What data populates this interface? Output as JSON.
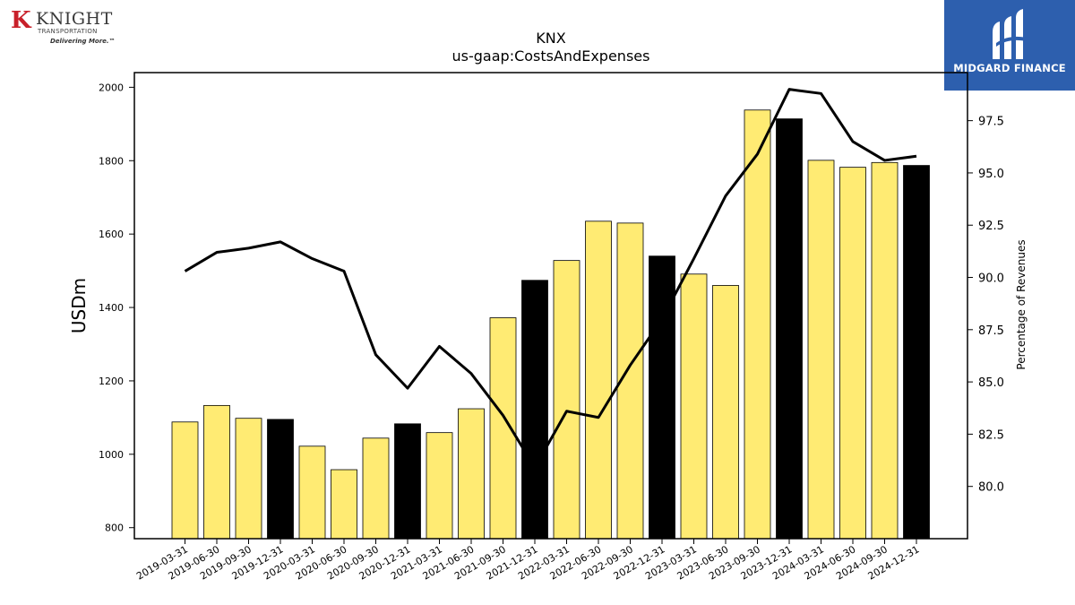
{
  "branding": {
    "left_logo": {
      "k_letter": "K",
      "name": "KNIGHT",
      "sub": "TRANSPORTATION",
      "tagline": "Delivering More.™"
    },
    "right_logo": {
      "text": "MIDGARD FINANCE",
      "bg_color": "#2d5fae"
    }
  },
  "chart_data": {
    "type": "bar",
    "title": "KNX",
    "subtitle": "us-gaap:CostsAndExpenses",
    "ylabel": "USDm",
    "y2label": "Percentage of Revenues",
    "ylim": [
      770,
      2040
    ],
    "y2lim": [
      77.5,
      99.8
    ],
    "yticks": [
      800,
      1000,
      1200,
      1400,
      1600,
      1800,
      2000
    ],
    "y2ticks": [
      80.0,
      82.5,
      85.0,
      87.5,
      90.0,
      92.5,
      95.0,
      97.5
    ],
    "y2tick_labels": [
      "80.0",
      "82.5",
      "85.0",
      "87.5",
      "90.0",
      "92.5",
      "95.0",
      "97.5"
    ],
    "categories": [
      "2019-03-31",
      "2019-06-30",
      "2019-09-30",
      "2019-12-31",
      "2020-03-31",
      "2020-06-30",
      "2020-09-30",
      "2020-12-31",
      "2021-03-31",
      "2021-06-30",
      "2021-09-30",
      "2021-12-31",
      "2022-03-31",
      "2022-06-30",
      "2022-09-30",
      "2022-12-31",
      "2023-03-31",
      "2023-06-30",
      "2023-09-30",
      "2023-12-31",
      "2024-03-31",
      "2024-06-30",
      "2024-09-30",
      "2024-12-31"
    ],
    "series": [
      {
        "type": "bar",
        "values": [
          1088,
          1133,
          1098,
          1095,
          1022,
          958,
          1044,
          1083,
          1059,
          1124,
          1372,
          1474,
          1528,
          1635,
          1630,
          1540,
          1491,
          1460,
          1938,
          1914,
          1801,
          1782,
          1795,
          1787
        ],
        "highlight": [
          false,
          false,
          false,
          true,
          false,
          false,
          false,
          true,
          false,
          false,
          false,
          true,
          false,
          false,
          false,
          true,
          false,
          false,
          false,
          true,
          false,
          false,
          false,
          true
        ]
      },
      {
        "type": "line",
        "axis": "right",
        "values": [
          90.3,
          91.2,
          91.4,
          91.7,
          90.9,
          90.3,
          86.3,
          84.7,
          86.7,
          85.4,
          83.4,
          80.9,
          83.6,
          83.3,
          85.8,
          88.0,
          90.9,
          93.9,
          95.9,
          99.0,
          98.8,
          96.5,
          95.6,
          95.8
        ]
      }
    ],
    "colors": {
      "bar": "#ffeb73",
      "bar_highlight": "#000000",
      "line": "#000000"
    },
    "grid": false,
    "legend": "none"
  }
}
